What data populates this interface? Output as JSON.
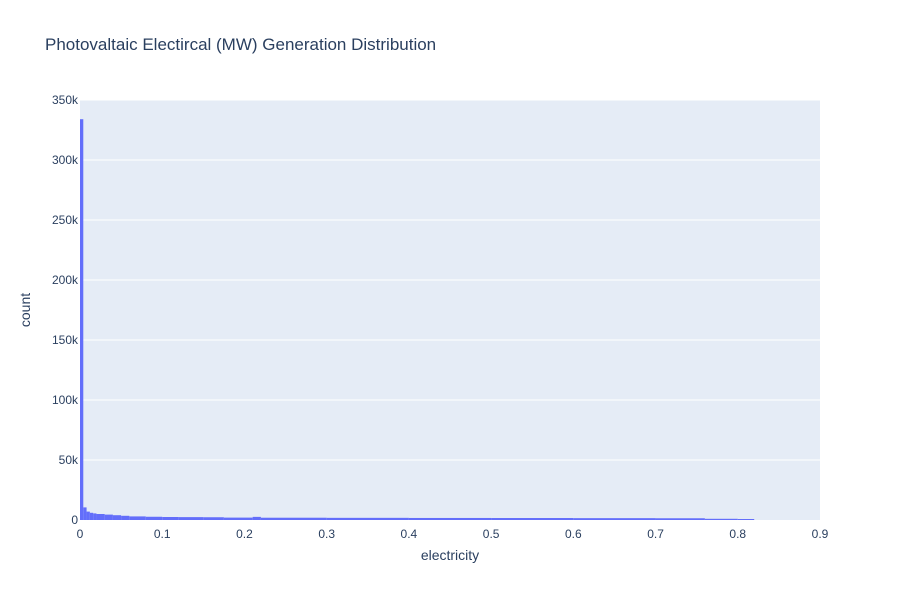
{
  "chart_data": {
    "type": "bar",
    "title": "Photovaltaic Electircal (MW) Generation Distribution",
    "xlabel": "electricity",
    "ylabel": "count",
    "xlim": [
      0,
      0.9
    ],
    "ylim": [
      0,
      350000
    ],
    "x_ticks": [
      0,
      0.1,
      0.2,
      0.3,
      0.4,
      0.5,
      0.6,
      0.7,
      0.8,
      0.9
    ],
    "x_tick_labels": [
      "0",
      "0.1",
      "0.2",
      "0.3",
      "0.4",
      "0.5",
      "0.6",
      "0.7",
      "0.8",
      "0.9"
    ],
    "y_ticks": [
      0,
      50000,
      100000,
      150000,
      200000,
      250000,
      300000,
      350000
    ],
    "y_tick_labels": [
      "0",
      "50k",
      "100k",
      "150k",
      "200k",
      "250k",
      "300k",
      "350k"
    ],
    "grid": true,
    "colors": {
      "bar": "#636efa",
      "plot_bg": "#e5ecf6",
      "grid": "#ffffff",
      "text": "#2a3f5f"
    },
    "bins": [
      {
        "x0": 0.0,
        "x1": 0.004,
        "count": 334000
      },
      {
        "x0": 0.004,
        "x1": 0.008,
        "count": 10500
      },
      {
        "x0": 0.008,
        "x1": 0.012,
        "count": 7000
      },
      {
        "x0": 0.012,
        "x1": 0.016,
        "count": 6000
      },
      {
        "x0": 0.016,
        "x1": 0.02,
        "count": 5500
      },
      {
        "x0": 0.02,
        "x1": 0.03,
        "count": 5000
      },
      {
        "x0": 0.03,
        "x1": 0.04,
        "count": 4500
      },
      {
        "x0": 0.04,
        "x1": 0.05,
        "count": 4000
      },
      {
        "x0": 0.05,
        "x1": 0.06,
        "count": 3500
      },
      {
        "x0": 0.06,
        "x1": 0.08,
        "count": 3000
      },
      {
        "x0": 0.08,
        "x1": 0.1,
        "count": 2700
      },
      {
        "x0": 0.1,
        "x1": 0.12,
        "count": 2500
      },
      {
        "x0": 0.12,
        "x1": 0.15,
        "count": 2400
      },
      {
        "x0": 0.15,
        "x1": 0.175,
        "count": 2300
      },
      {
        "x0": 0.175,
        "x1": 0.21,
        "count": 2000
      },
      {
        "x0": 0.21,
        "x1": 0.22,
        "count": 2600
      },
      {
        "x0": 0.22,
        "x1": 0.3,
        "count": 1900
      },
      {
        "x0": 0.3,
        "x1": 0.4,
        "count": 1800
      },
      {
        "x0": 0.4,
        "x1": 0.5,
        "count": 1700
      },
      {
        "x0": 0.5,
        "x1": 0.6,
        "count": 1650
      },
      {
        "x0": 0.6,
        "x1": 0.7,
        "count": 1550
      },
      {
        "x0": 0.7,
        "x1": 0.76,
        "count": 1450
      },
      {
        "x0": 0.76,
        "x1": 0.8,
        "count": 1000
      },
      {
        "x0": 0.8,
        "x1": 0.82,
        "count": 600
      }
    ]
  }
}
